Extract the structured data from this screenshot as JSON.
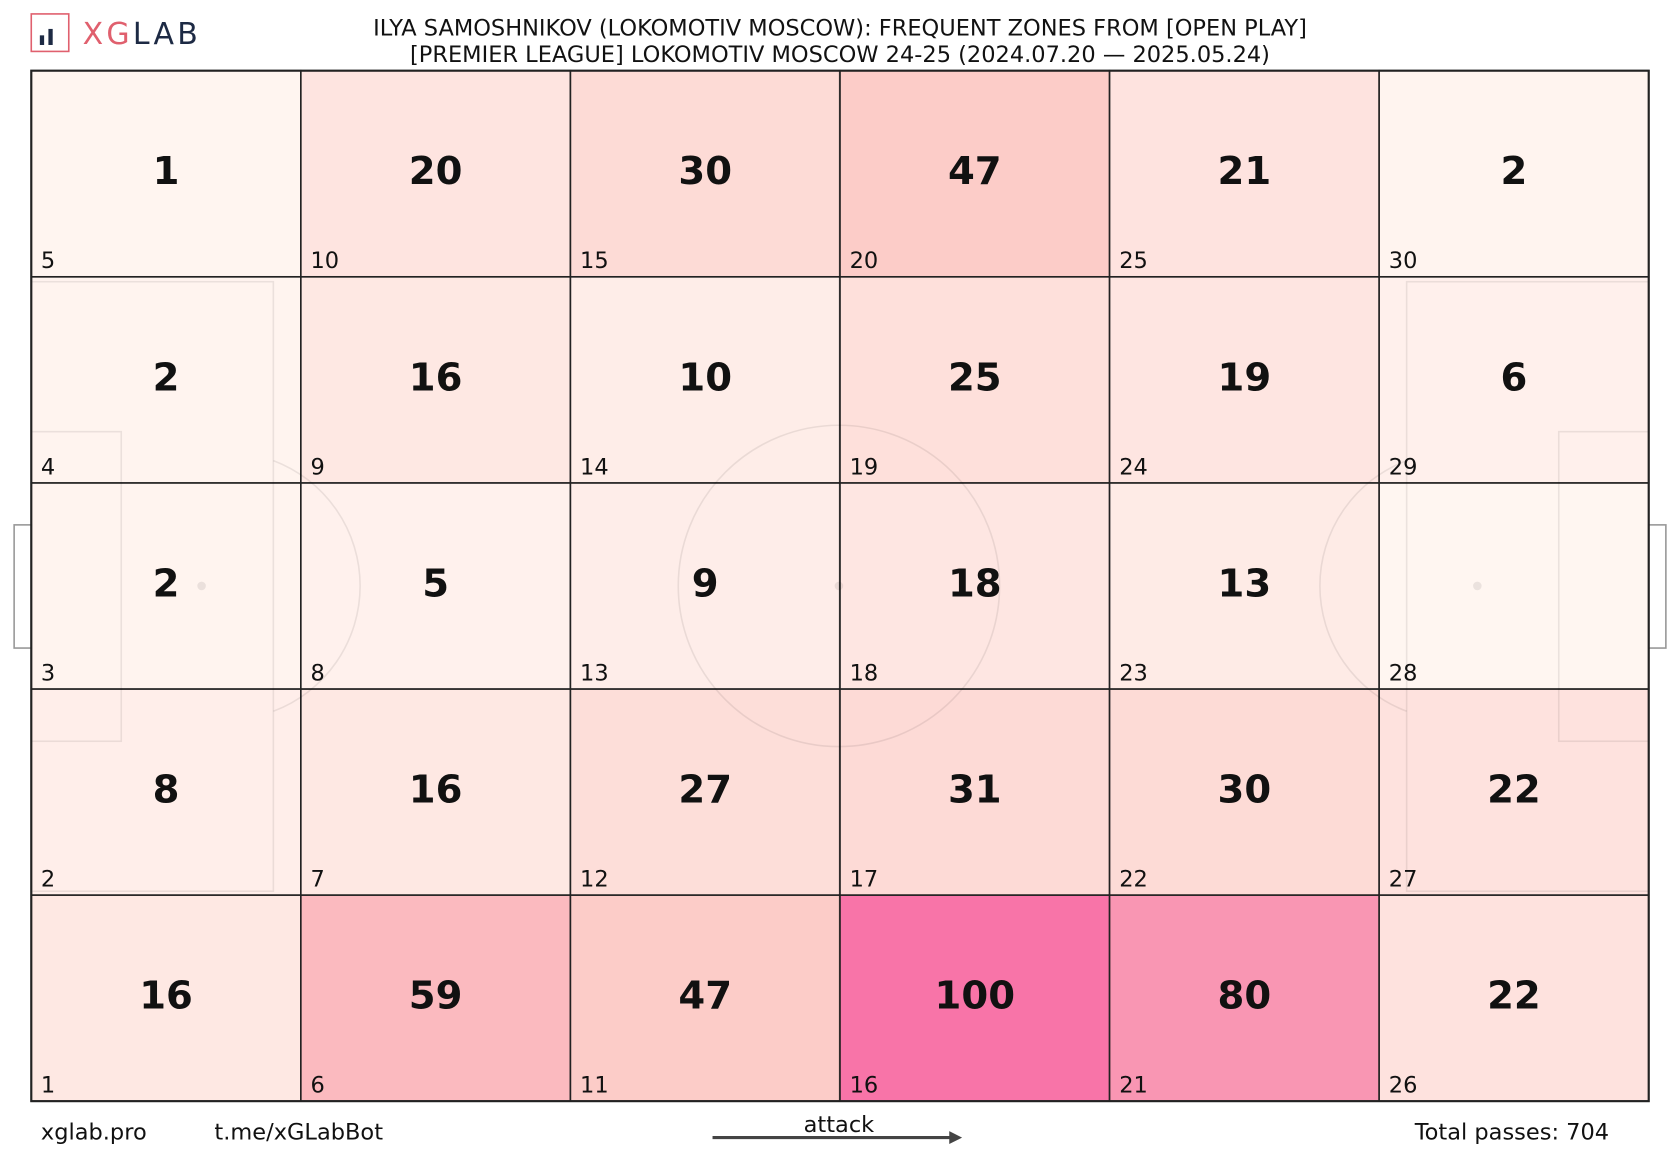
{
  "chart_data": {
    "type": "heatmap",
    "title": "ILYA SAMOSHNIKOV (LOKOMOTIV MOSCOW): FREQUENT ZONES FROM [OPEN PLAY]",
    "subtitle": "[PREMIER LEAGUE] LOKOMOTIV MOSCOW 24-25 (2024.07.20 — 2025.05.24)",
    "logo": [
      "XG",
      "LAB"
    ],
    "zones": [
      1,
      2,
      3,
      4,
      5,
      6,
      7,
      8,
      9,
      10,
      11,
      12,
      13,
      14,
      15,
      16,
      17,
      18,
      19,
      20,
      21,
      22,
      23,
      24,
      25,
      26,
      27,
      28,
      29,
      30
    ],
    "counts": [
      16,
      8,
      2,
      2,
      1,
      59,
      16,
      5,
      16,
      20,
      47,
      27,
      9,
      10,
      30,
      100,
      31,
      18,
      25,
      47,
      80,
      30,
      13,
      19,
      21,
      22,
      22,
      null,
      6,
      2
    ],
    "colors": [
      "#fff5f0",
      "#fcc5c0",
      "#f768a1"
    ],
    "footer": {
      "site": "xglab.pro",
      "bot": "t.me/xGLabBot",
      "direction": "attack",
      "total": "Total passes: 704"
    }
  }
}
